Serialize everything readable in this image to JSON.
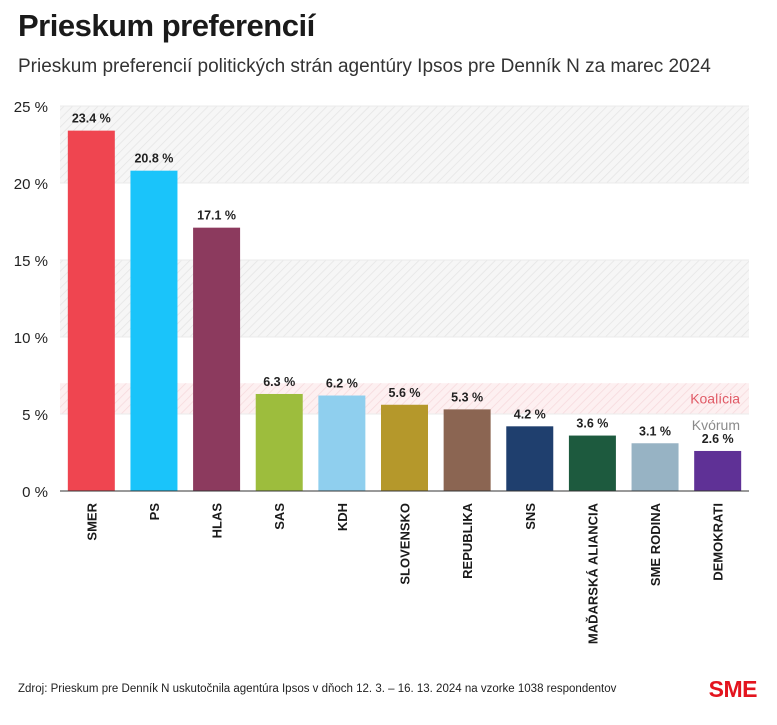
{
  "header": {
    "title": "Prieskum preferencií",
    "subtitle": "Prieskum preferencií politických strán agentúry Ipsos pre Denník N za marec 2024"
  },
  "footer": {
    "source": "Zdroj: Prieskum pre Denník N uskutočnila agentúra Ipsos v dňoch 12. 3. – 16. 13. 2024 na vzorke 1038 respondentov",
    "logo": "SME"
  },
  "chart_data": {
    "type": "bar",
    "title": "Prieskum preferencií",
    "subtitle": "Prieskum preferencií politických strán agentúry Ipsos pre Denník N za marec 2024",
    "categories": [
      "SMER",
      "PS",
      "HLAS",
      "SAS",
      "KDH",
      "SLOVENSKO",
      "REPUBLIKA",
      "SNS",
      "MAĎARSKÁ ALIANCIA",
      "SME RODINA",
      "DEMOKRATI"
    ],
    "values": [
      23.4,
      20.8,
      17.1,
      6.3,
      6.2,
      5.6,
      5.3,
      4.2,
      3.6,
      3.1,
      2.6
    ],
    "data_labels": [
      "23.4 %",
      "20.8 %",
      "17.1 %",
      "6.3 %",
      "6.2 %",
      "5.6 %",
      "5.3 %",
      "4.2 %",
      "3.6 %",
      "3.1 %",
      "2.6 %"
    ],
    "colors": [
      "#ef4550",
      "#1ac4fa",
      "#8c3a5e",
      "#9dbd3d",
      "#8fcfee",
      "#b5982b",
      "#8b6552",
      "#1f3f6e",
      "#1d5a3e",
      "#97b3c4",
      "#5f3196"
    ],
    "ylim": [
      0,
      25
    ],
    "yticks": [
      0,
      5,
      10,
      15,
      20,
      25
    ],
    "ytick_labels": [
      "0 %",
      "5 %",
      "10 %",
      "15 %",
      "20 %",
      "25 %"
    ],
    "xlabel": "",
    "ylabel": "",
    "grid": "hatched bands",
    "thresholds": [
      {
        "label": "Koalícia",
        "from": 5,
        "to": 7,
        "color": "#e05a66"
      },
      {
        "label": "Kvórum",
        "from": 0,
        "to": 5,
        "color": "#8a8a8a"
      }
    ]
  }
}
